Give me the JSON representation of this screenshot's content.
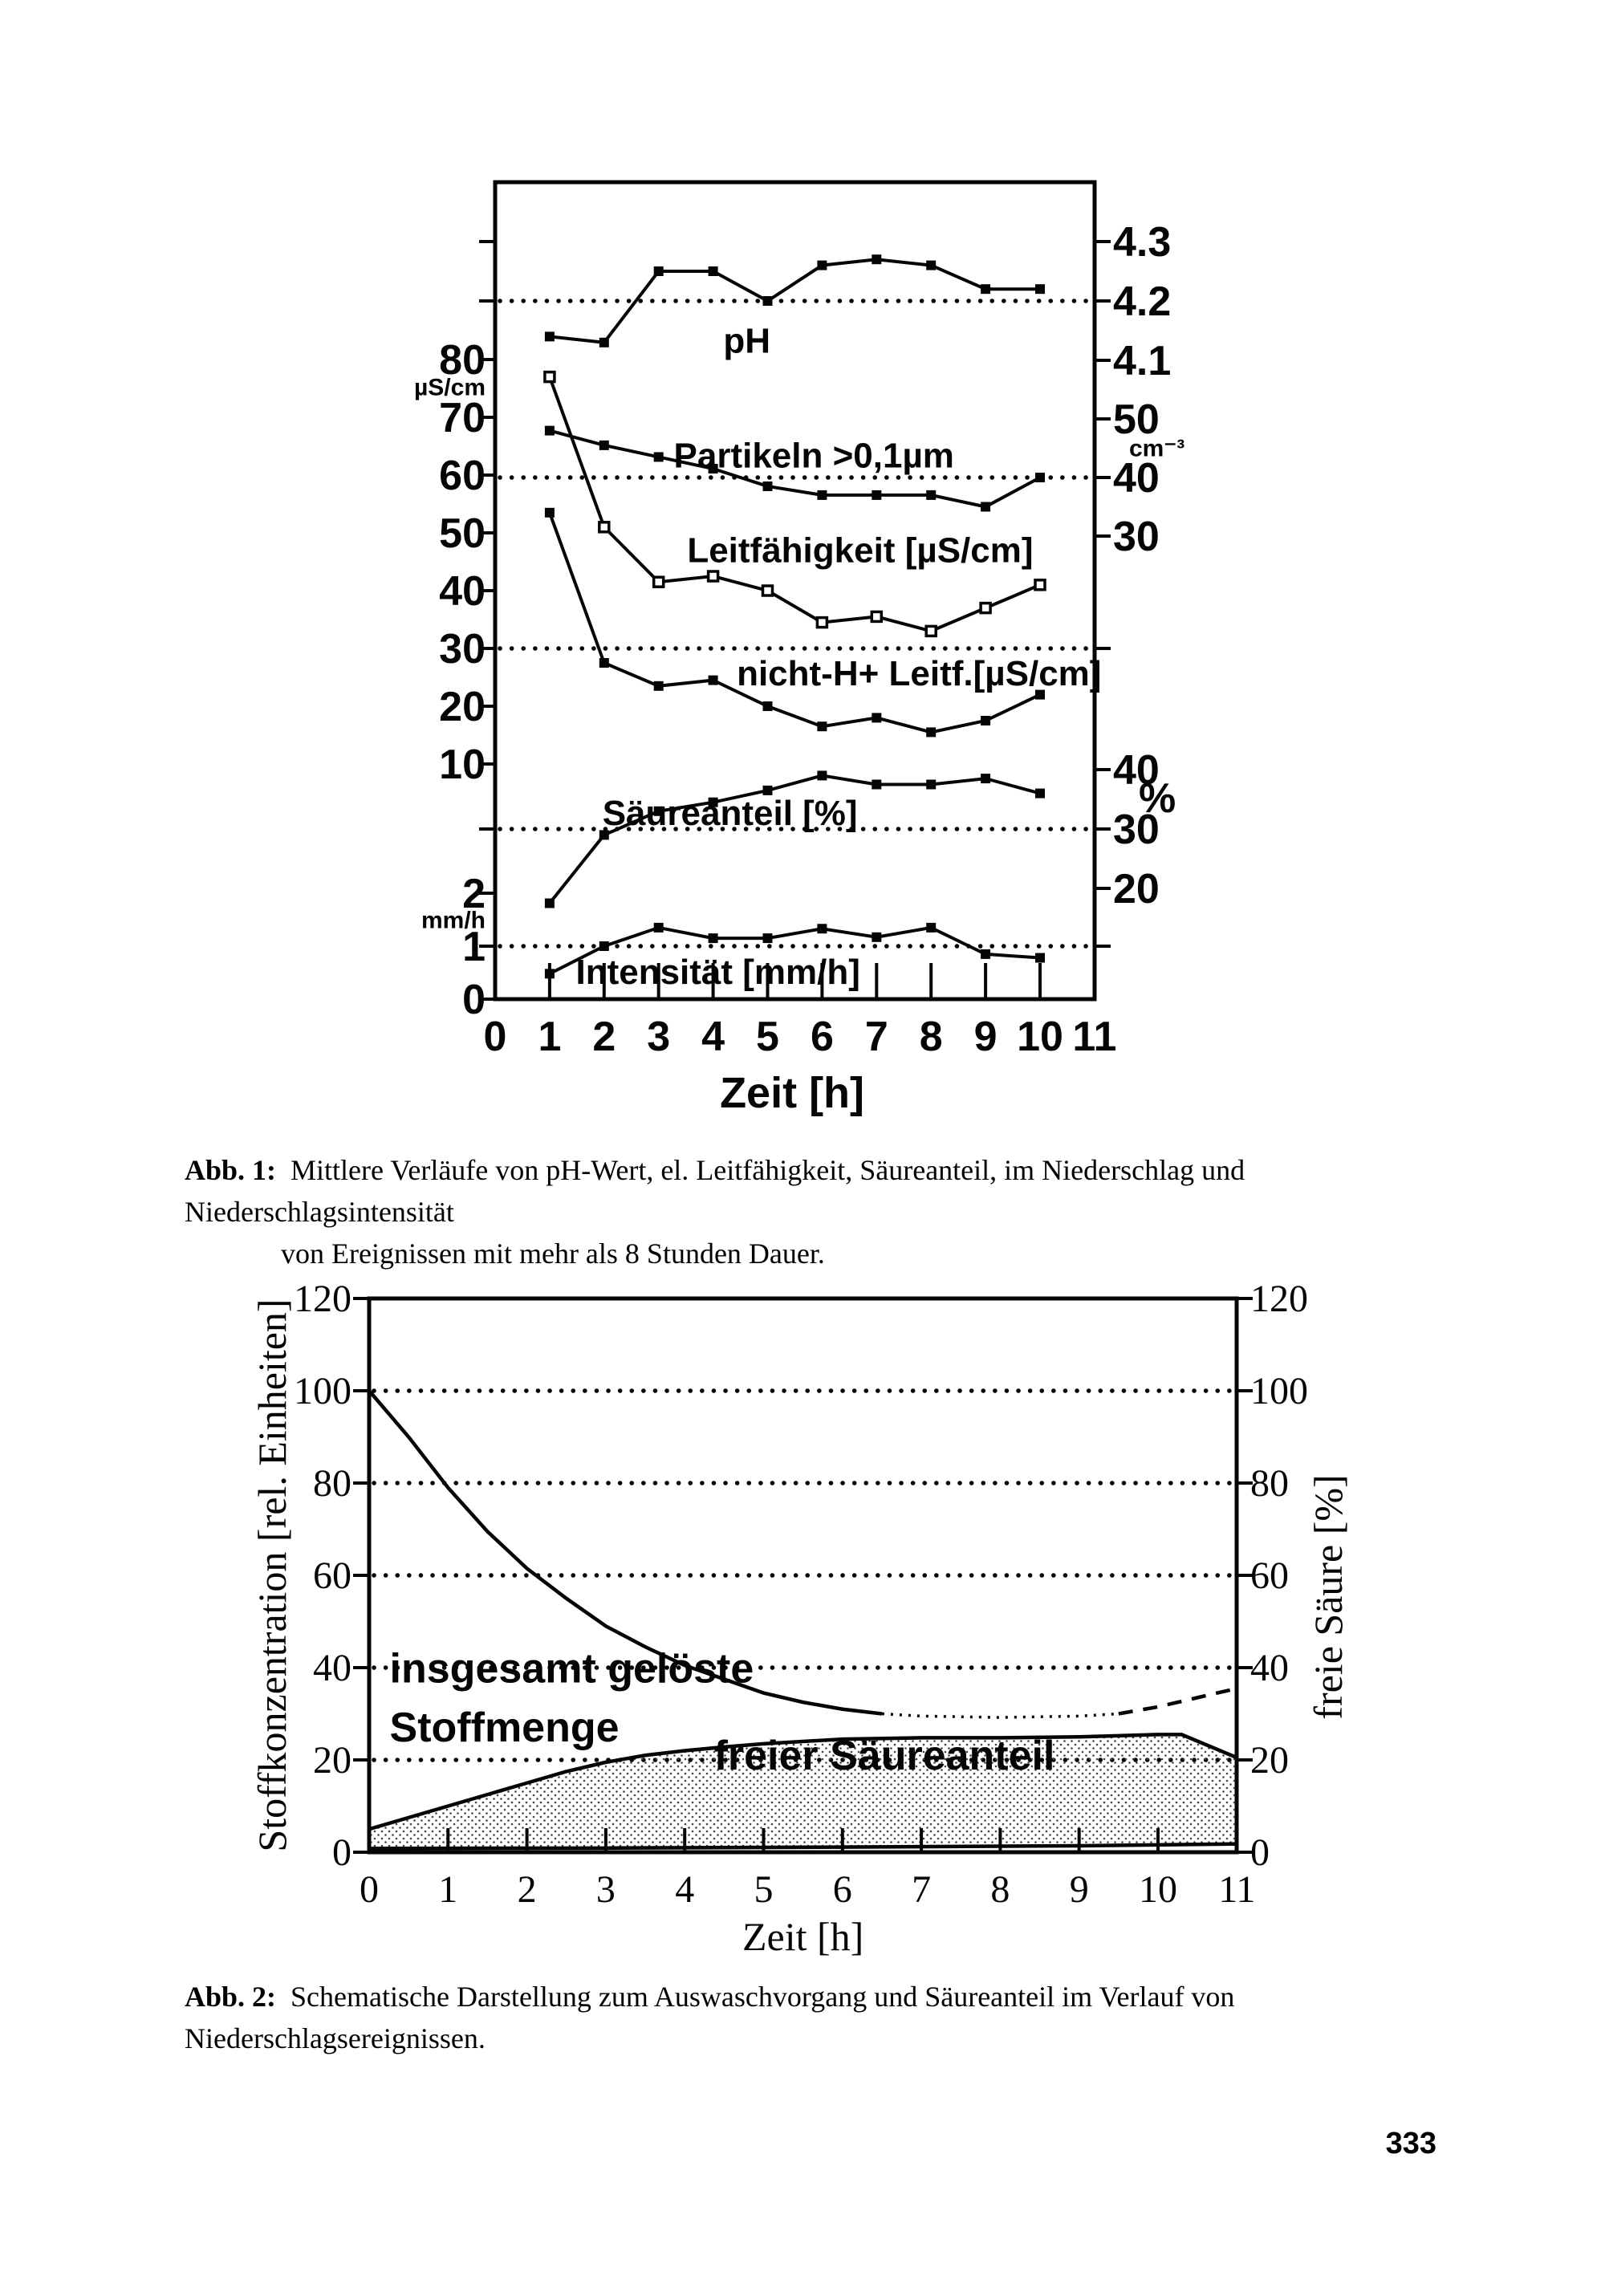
{
  "page": {
    "number": "333"
  },
  "figure1": {
    "caption_label": "Abb. 1:",
    "caption_line1": "Mittlere Verläufe von pH-Wert, el. Leitfähigkeit, Säureanteil, im Niederschlag und Niederschlagsintensität",
    "caption_line2": "von Ereignissen mit mehr als 8 Stunden Dauer."
  },
  "figure2": {
    "caption_label": "Abb. 2:",
    "caption_text": "Schematische Darstellung zum Auswaschvorgang und Säureanteil im Verlauf von Niederschlagsereignissen."
  },
  "chart_data": [
    {
      "type": "line",
      "title": "Mittlere Verläufe in Niederschlagsereignissen (> 8 h Dauer)",
      "xlabel": "Zeit [h]",
      "xlim": [
        0,
        11
      ],
      "x_ticks": [
        0,
        1,
        2,
        3,
        4,
        5,
        6,
        7,
        8,
        9,
        10,
        11
      ],
      "grid": "dotted horizontal reference lines",
      "legend_position": "labels next to curves",
      "scales_note": "stacked multi-scale y-axis: pH (right 4.1-4.3), Partikeln cm⁻³ (right 30-50), Leitfähigkeit µS/cm (left 10-80), Säureanteil % (right 20-40), Intensität mm/h (left 0-2)",
      "axes_left": [
        {
          "axis": "pH",
          "value": 4.3,
          "label": ""
        },
        {
          "axis": "pH",
          "value": 4.2,
          "label": ""
        },
        {
          "axis": "us",
          "value": 80,
          "label": "80"
        },
        {
          "axis": "us",
          "value": 75.5,
          "label": "µS/cm",
          "small": true,
          "notick": true
        },
        {
          "axis": "us",
          "value": 70,
          "label": "70"
        },
        {
          "axis": "us",
          "value": 60,
          "label": "60"
        },
        {
          "axis": "us",
          "value": 50,
          "label": "50"
        },
        {
          "axis": "us",
          "value": 40,
          "label": "40"
        },
        {
          "axis": "us",
          "value": 30,
          "label": "30"
        },
        {
          "axis": "us",
          "value": 20,
          "label": "20"
        },
        {
          "axis": "us",
          "value": 10,
          "label": "10"
        },
        {
          "axis": "pct",
          "value": 30,
          "label": ""
        },
        {
          "axis": "mmh",
          "value": 2,
          "label": "2"
        },
        {
          "axis": "mmh",
          "value": 1.52,
          "label": "mm/h",
          "small": true,
          "notick": true
        },
        {
          "axis": "mmh",
          "value": 1,
          "label": "1"
        },
        {
          "axis": "mmh",
          "value": 0,
          "label": "0"
        }
      ],
      "axes_right": [
        {
          "axis": "pH",
          "value": 4.3,
          "label": "4.3"
        },
        {
          "axis": "pH",
          "value": 4.2,
          "label": "4.2"
        },
        {
          "axis": "pH",
          "value": 4.1,
          "label": "4.1"
        },
        {
          "axis": "cm3",
          "value": 50,
          "label": "50"
        },
        {
          "axis": "cm3",
          "value": 45.3,
          "label": "cm⁻³",
          "small": true,
          "notick": true,
          "dx": 20
        },
        {
          "axis": "cm3",
          "value": 40,
          "label": "40"
        },
        {
          "axis": "cm3",
          "value": 30,
          "label": "30"
        },
        {
          "axis": "us",
          "value": 30,
          "label": ""
        },
        {
          "axis": "pct",
          "value": 40,
          "label": "40"
        },
        {
          "axis": "pct",
          "value": 35.3,
          "label": "%",
          "notick": true,
          "dx": 32
        },
        {
          "axis": "pct",
          "value": 30,
          "label": "30"
        },
        {
          "axis": "pct",
          "value": 20,
          "label": "20"
        },
        {
          "axis": "mmh",
          "value": 1,
          "label": ""
        }
      ],
      "gridlines": [
        {
          "axis": "pH",
          "value": 4.2
        },
        {
          "axis": "cm3",
          "value": 40
        },
        {
          "axis": "us",
          "value": 30
        },
        {
          "axis": "pct",
          "value": 30
        },
        {
          "axis": "mmh",
          "value": 1
        }
      ],
      "series": [
        {
          "name": "pH",
          "axis": "pH",
          "marker": "filled",
          "label": "pH",
          "x": [
            1,
            2,
            3,
            4,
            5,
            6,
            7,
            8,
            9,
            10
          ],
          "y": [
            4.14,
            4.13,
            4.25,
            4.25,
            4.2,
            4.26,
            4.27,
            4.26,
            4.22,
            4.22
          ],
          "label_pos": {
            "h": 4.62,
            "v": 4.113
          }
        },
        {
          "name": "Partikeln >0,1µm",
          "axis": "cm3",
          "marker": "filled",
          "label": "Partikeln >0,1µm",
          "x": [
            1,
            2,
            3,
            4,
            5,
            6,
            7,
            8,
            9,
            10
          ],
          "y": [
            48,
            45.5,
            43.5,
            41.5,
            38.5,
            37,
            37,
            37,
            35,
            40
          ],
          "label_pos": {
            "h": 5.85,
            "v": 41.7
          }
        },
        {
          "name": "Leitfähigkeit [µS/cm]",
          "axis": "us",
          "marker": "open",
          "label": "Leitfähigkeit [µS/cm]",
          "x": [
            1,
            2,
            3,
            4,
            5,
            6,
            7,
            8,
            9,
            10
          ],
          "y": [
            77,
            51,
            41.5,
            42.5,
            40,
            34.5,
            35.5,
            33,
            37,
            41
          ],
          "label_pos": {
            "h": 6.7,
            "v": 44.9
          }
        },
        {
          "name": "nicht-H+ Leitf.[µS/cm]",
          "axis": "us",
          "marker": "filled",
          "label": "nicht-H+ Leitf.[µS/cm]",
          "x": [
            1,
            2,
            3,
            4,
            5,
            6,
            7,
            8,
            9,
            10
          ],
          "y": [
            53.5,
            27.5,
            23.5,
            24.5,
            20,
            16.5,
            18,
            15.5,
            17.5,
            22
          ],
          "label_pos": {
            "h": 7.78,
            "v": 23.6
          }
        },
        {
          "name": "Säureanteil [%]",
          "axis": "pct",
          "marker": "filled",
          "label": "Säureanteil [%]",
          "x": [
            1,
            2,
            3,
            4,
            5,
            6,
            7,
            8,
            9,
            10
          ],
          "y": [
            17.5,
            29,
            33,
            34.5,
            36.5,
            39,
            37.5,
            37.5,
            38.5,
            36
          ],
          "label_pos": {
            "h": 4.31,
            "v": 30.7
          }
        },
        {
          "name": "Intensität [mm/h]",
          "axis": "mmh",
          "marker": "filled",
          "label": "Intensität [mm/h]",
          "x": [
            1,
            2,
            3,
            4,
            5,
            6,
            7,
            8,
            9,
            10
          ],
          "y": [
            0.48,
            1.0,
            1.35,
            1.15,
            1.15,
            1.33,
            1.17,
            1.35,
            0.85,
            0.78
          ],
          "label_pos": {
            "h": 4.09,
            "v": 0.29
          }
        }
      ]
    },
    {
      "type": "area",
      "title": "Auswaschvorgang und Säureanteil",
      "xlabel": "Zeit [h]",
      "ylabel_left": "Stoffkonzentration [rel. Einheiten]",
      "ylabel_right": "freie Säure [%]",
      "xlim": [
        0,
        11
      ],
      "ylim": [
        0,
        120
      ],
      "x_ticks": [
        0,
        1,
        2,
        3,
        4,
        5,
        6,
        7,
        8,
        9,
        10,
        11
      ],
      "y_ticks": [
        0,
        20,
        40,
        60,
        80,
        100,
        120
      ],
      "gridlines": [
        20,
        40,
        60,
        80,
        100
      ],
      "series": [
        {
          "name": "insgesamt gelöste Stoffmenge",
          "type": "line",
          "x": [
            0,
            0.5,
            1,
            1.5,
            2,
            2.5,
            3,
            3.5,
            4,
            4.5,
            5,
            5.5,
            6,
            6.5,
            7,
            8,
            9,
            9.5,
            10,
            10.5,
            11
          ],
          "y": [
            100,
            90,
            79,
            69.5,
            61.5,
            55,
            49,
            44.5,
            40.5,
            37.5,
            34.5,
            32.5,
            31,
            30,
            29.5,
            29.2,
            29.5,
            30,
            31.5,
            33.5,
            35.5
          ],
          "style_breaks": [
            {
              "at": 6.5,
              "style": "dotted"
            },
            {
              "at": 9.5,
              "style": "dashed"
            }
          ]
        },
        {
          "name": "freier Säureanteil",
          "type": "area",
          "fill": "fine dot raster",
          "upper_x": [
            0,
            0.5,
            1,
            1.5,
            2,
            2.5,
            3,
            3.5,
            4,
            4.5,
            5,
            6,
            7,
            8,
            9,
            10,
            10.3,
            11
          ],
          "upper_y": [
            5,
            7.5,
            10,
            12.5,
            15,
            17.5,
            19.5,
            21,
            22,
            22.8,
            23.5,
            24.5,
            24.8,
            24.8,
            25,
            25.5,
            25.5,
            20.5
          ],
          "lower_x": [
            0,
            3,
            6,
            9,
            11
          ],
          "lower_y": [
            0.8,
            0.9,
            1.1,
            1.4,
            1.8
          ]
        }
      ],
      "annotations": [
        {
          "text": "insgesamt gelöste",
          "h": 0.26,
          "v": 36.8
        },
        {
          "text": "Stoffmenge",
          "h": 0.26,
          "v": 24
        },
        {
          "text": "freier Säureanteil",
          "h": 4.37,
          "v": 17.9
        }
      ]
    }
  ]
}
